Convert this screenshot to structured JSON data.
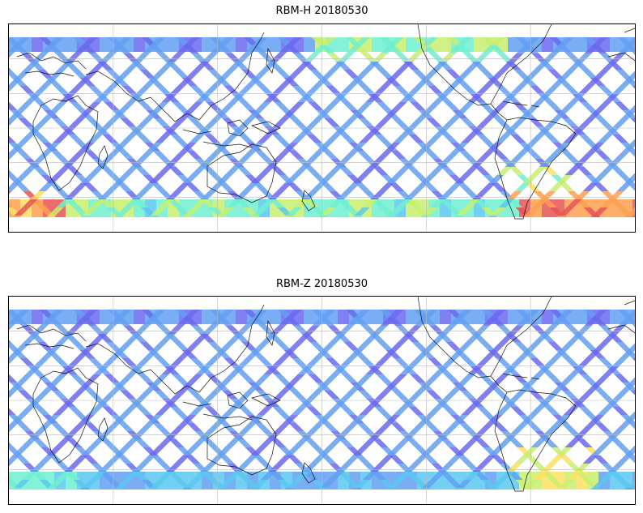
{
  "figure": {
    "panels": [
      {
        "title": "RBM-H 20180530",
        "hot_regions": [
          "south-atlantic",
          "south-indian-west",
          "north-pacific-mid"
        ],
        "colors": {
          "low": "#6a6af0",
          "mid": "#5ac8f0",
          "high": "#e85555"
        }
      },
      {
        "title": "RBM-Z 20180530",
        "hot_regions": [
          "south-atlantic-weak"
        ],
        "colors": {
          "low": "#6a6af0",
          "mid": "#5ac8f0",
          "high": "#ffc050"
        }
      }
    ],
    "colormap": [
      "#6a6af0",
      "#62a0f2",
      "#5ac8f0",
      "#70f0d0",
      "#c8f070",
      "#ffe060",
      "#ffa050",
      "#e85555"
    ],
    "gridlines": true,
    "coastlines": true
  }
}
